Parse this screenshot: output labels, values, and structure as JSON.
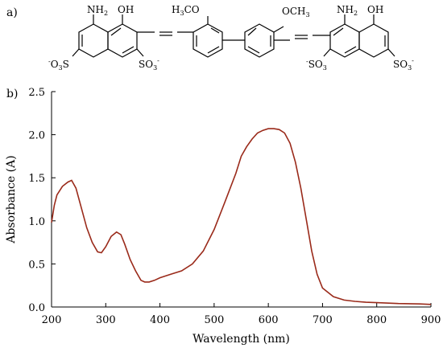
{
  "panel_labels": {
    "a": "a)",
    "b": "b)"
  },
  "molecule": {
    "groups": [
      "NH2",
      "OH",
      "H3CO",
      "OCH3",
      "NH2",
      "OH",
      "-O3S",
      "SO3-",
      "SO3-",
      "SO3-"
    ],
    "left_nh2": "NH",
    "left_nh2_sub": "2",
    "left_oh": "OH",
    "h3co_h": "H",
    "h3co_sub": "3",
    "h3co_rest": "CO",
    "och3": "OCH",
    "och3_sub": "3",
    "right_nh2": "NH",
    "right_nh2_sub": "2",
    "right_oh": "OH",
    "left_so3_a_pre": "O",
    "left_so3_a_sub": "3",
    "left_so3_a_post": "S",
    "left_so3_a_sup": "-",
    "left_so3_b": "SO",
    "left_so3_b_sub": "3",
    "left_so3_b_sup": "-",
    "right_so3_a": "SO",
    "right_so3_a_sub": "3",
    "right_so3_a_sup": "-",
    "right_so3_b": "SO",
    "right_so3_b_sub": "3",
    "right_so3_b_sup": "-",
    "neg_prefix": "-"
  },
  "chart_data": {
    "type": "line",
    "xlabel": "Wavelength  (nm)",
    "ylabel": "Absorbance (A)",
    "xlim": [
      200,
      900
    ],
    "ylim": [
      0.0,
      2.5
    ],
    "xticks": [
      200,
      300,
      400,
      500,
      600,
      700,
      800,
      900
    ],
    "yticks": [
      "0.0",
      "0.5",
      "1.0",
      "1.5",
      "2.0",
      "2.5"
    ],
    "series": [
      {
        "color": "#9a2a1a",
        "x": [
          200,
          205,
          210,
          220,
          230,
          237,
          245,
          255,
          265,
          275,
          285,
          292,
          300,
          310,
          320,
          328,
          335,
          345,
          355,
          365,
          372,
          380,
          390,
          400,
          420,
          440,
          460,
          480,
          500,
          520,
          540,
          550,
          560,
          570,
          580,
          590,
          600,
          610,
          620,
          630,
          640,
          650,
          660,
          670,
          680,
          690,
          700,
          720,
          740,
          760,
          780,
          800,
          840,
          880,
          900
        ],
        "y": [
          0.98,
          1.18,
          1.3,
          1.4,
          1.45,
          1.47,
          1.38,
          1.15,
          0.92,
          0.75,
          0.64,
          0.63,
          0.7,
          0.82,
          0.87,
          0.84,
          0.73,
          0.55,
          0.42,
          0.31,
          0.29,
          0.29,
          0.31,
          0.34,
          0.38,
          0.42,
          0.5,
          0.65,
          0.9,
          1.22,
          1.55,
          1.75,
          1.86,
          1.95,
          2.02,
          2.05,
          2.07,
          2.07,
          2.06,
          2.02,
          1.9,
          1.68,
          1.38,
          1.02,
          0.65,
          0.38,
          0.22,
          0.12,
          0.08,
          0.065,
          0.055,
          0.05,
          0.04,
          0.035,
          0.03
        ]
      }
    ]
  }
}
